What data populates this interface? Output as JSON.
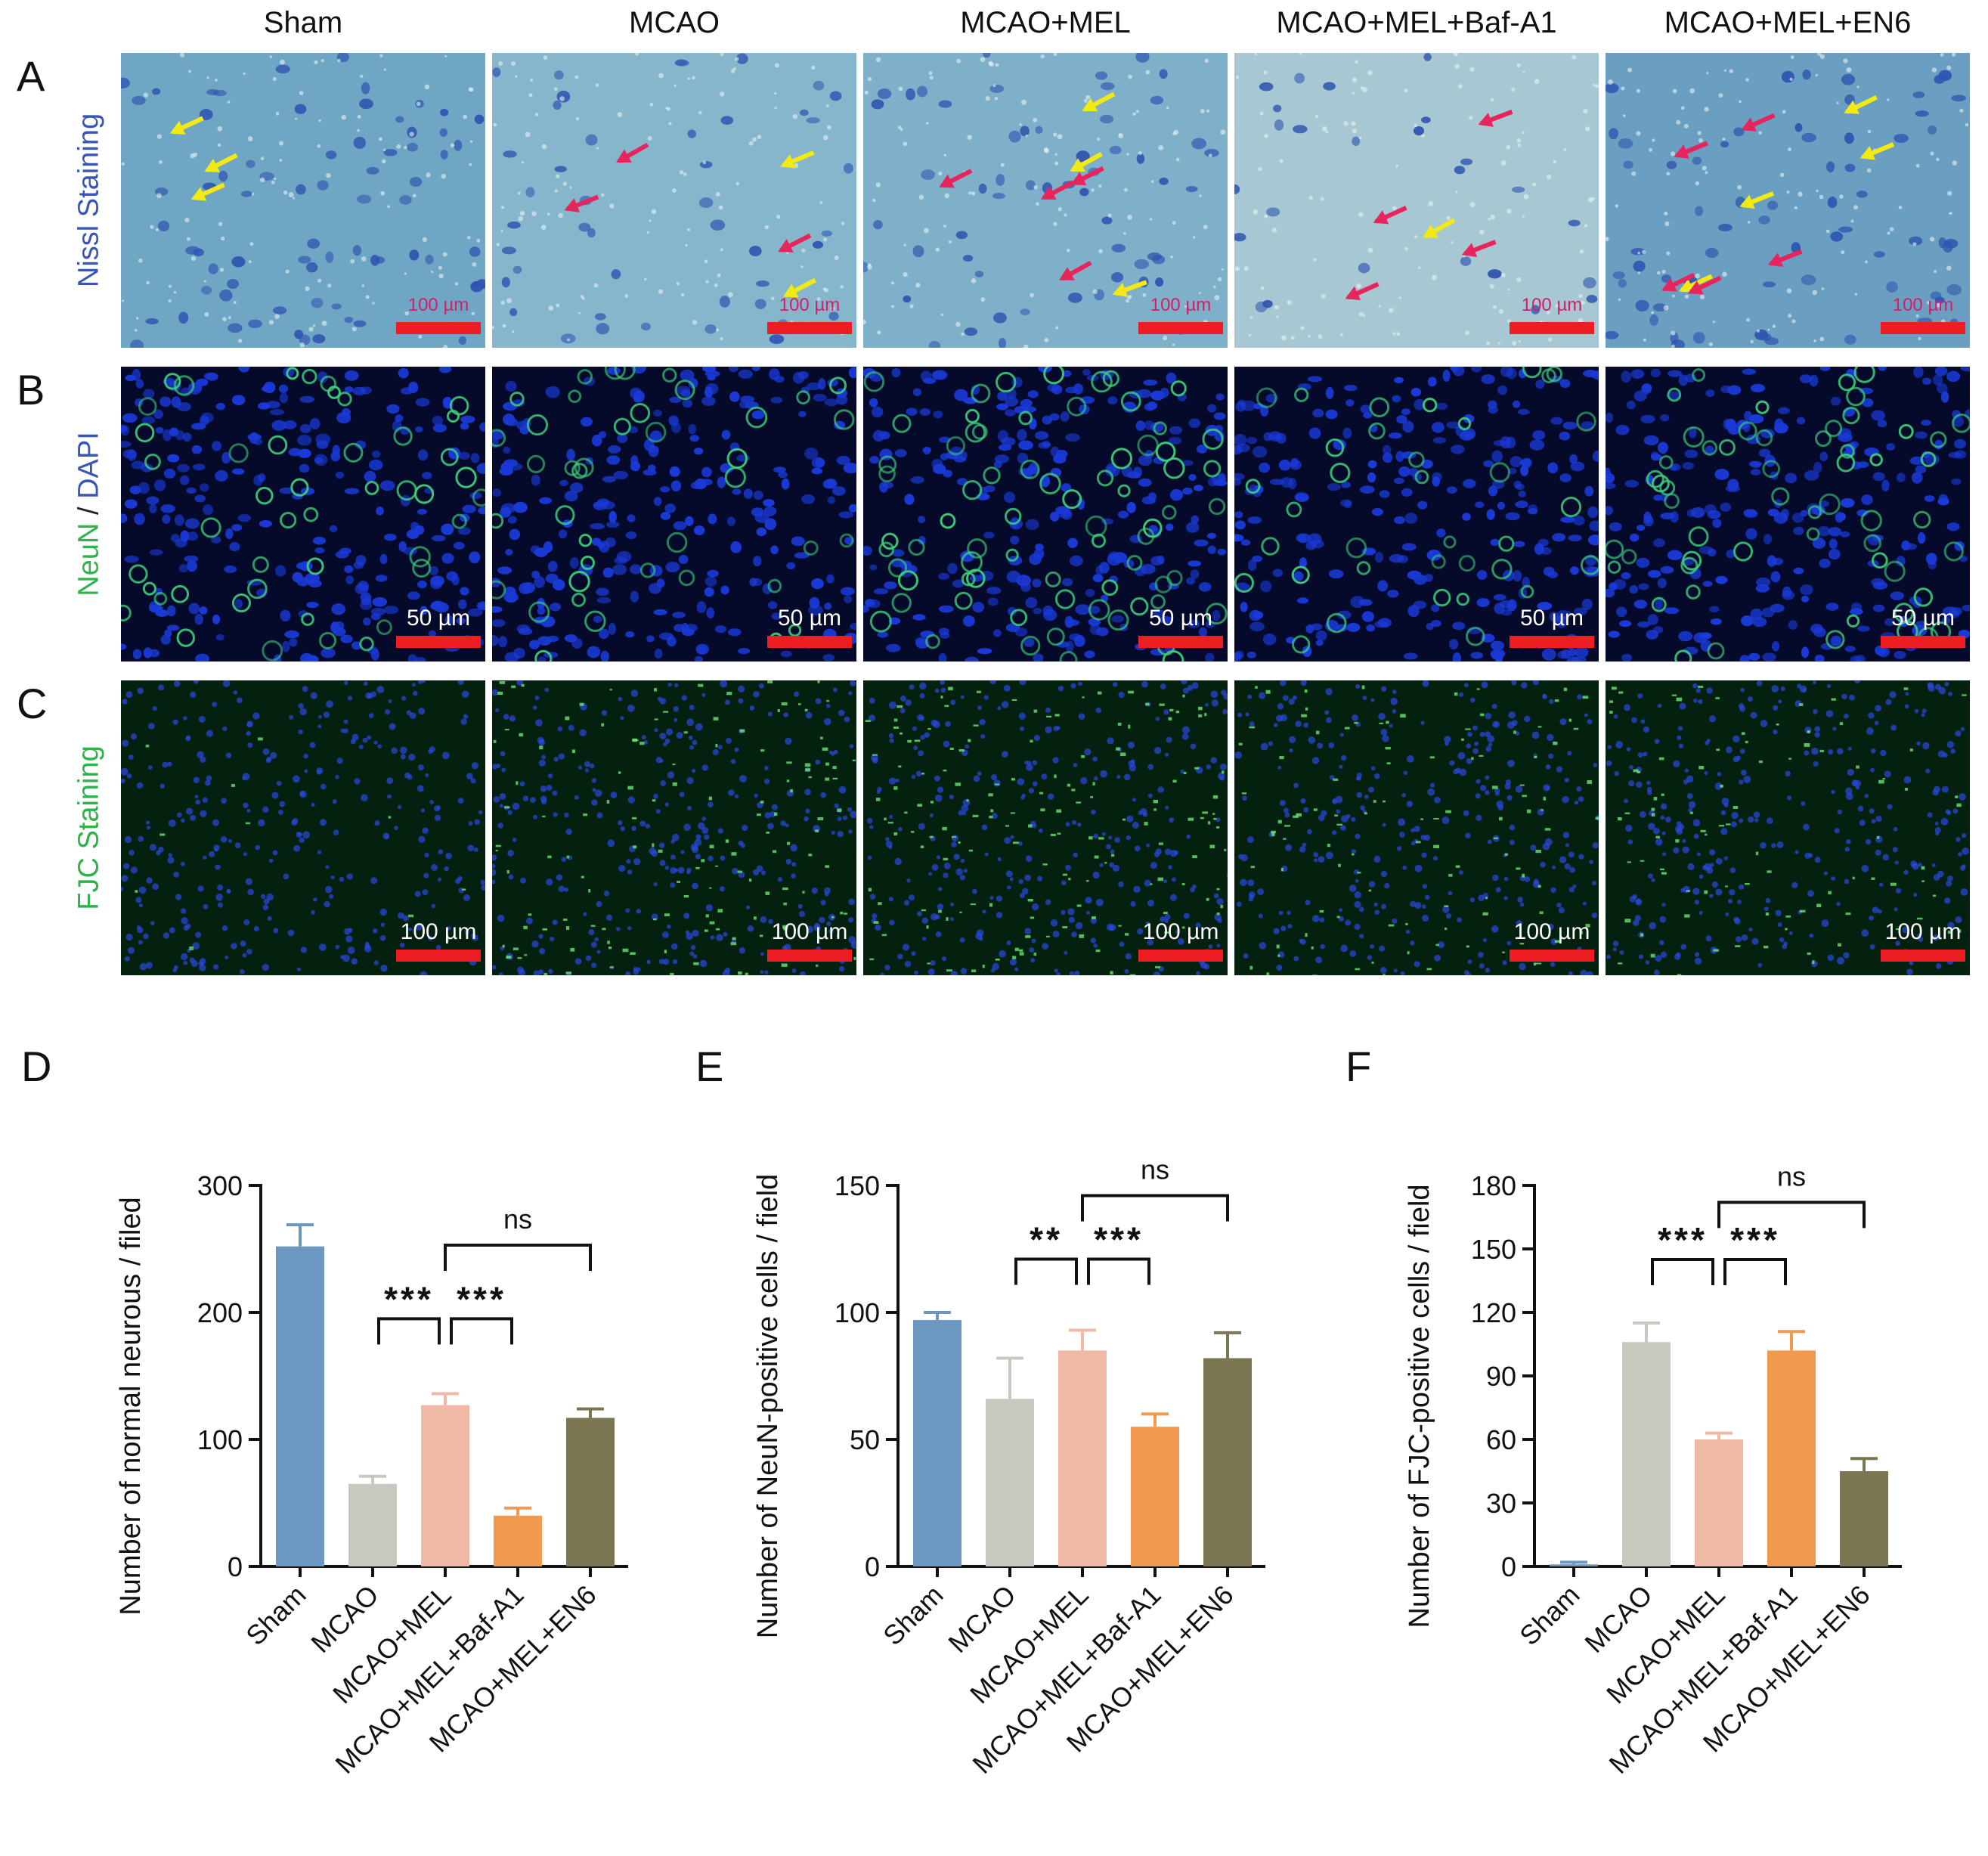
{
  "figure": {
    "groups": [
      "Sham",
      "MCAO",
      "MCAO+MEL",
      "MCAO+MEL+Baf-A1",
      "MCAO+MEL+EN6"
    ],
    "rows": [
      {
        "letter": "A",
        "label_parts": [
          {
            "text": "Nissl Staining",
            "color": "#3a56b5"
          }
        ],
        "scale": "100 µm",
        "style": "nissl"
      },
      {
        "letter": "B",
        "label_parts": [
          {
            "text": "NeuN",
            "color": "#2eb24a"
          },
          {
            "text": " / ",
            "color": "#222222"
          },
          {
            "text": "DAPI",
            "color": "#3a56b5"
          }
        ],
        "scale": "50 µm",
        "style": "neun"
      },
      {
        "letter": "C",
        "label_parts": [
          {
            "text": "FJC Staining",
            "color": "#2eb24a"
          }
        ],
        "scale": "100 µm",
        "style": "fjc"
      }
    ],
    "colors": {
      "Sham": "#6c97c0",
      "MCAO": "#c8c7c0",
      "MCAO+MEL": "#f0b9a6",
      "MCAO+MEL+Baf-A1": "#ef9a4f",
      "MCAO+MEL+EN6": "#7a7652",
      "scale_bar": "#ee1d23",
      "nissl_bg": "#7aaec7",
      "nissl_cell": "#2f55b0",
      "arrow_yellow": "#f2ea12",
      "arrow_red": "#e8245c"
    },
    "arrows": [
      {
        "yellow": 3,
        "red": 0
      },
      {
        "yellow": 2,
        "red": 3
      },
      {
        "yellow": 3,
        "red": 4
      },
      {
        "yellow": 1,
        "red": 4
      },
      {
        "yellow": 4,
        "red": 5
      }
    ]
  },
  "chart_data": [
    {
      "panel": "D",
      "type": "bar",
      "categories": [
        "Sham",
        "MCAO",
        "MCAO+MEL",
        "MCAO+MEL+Baf-A1",
        "MCAO+MEL+EN6"
      ],
      "values": [
        252,
        65,
        127,
        40,
        117
      ],
      "errors": [
        17,
        6,
        9,
        6,
        7
      ],
      "ylabel": "Number of normal neurous / filed",
      "ylim": [
        0,
        300
      ],
      "yticks": [
        0,
        100,
        200,
        300
      ],
      "significance": [
        {
          "from": 1,
          "to": 2,
          "label": "***",
          "y": 195
        },
        {
          "from": 2,
          "to": 3,
          "label": "***",
          "y": 195
        },
        {
          "from": 2,
          "to": 4,
          "label": "ns",
          "y": 253
        }
      ]
    },
    {
      "panel": "E",
      "type": "bar",
      "categories": [
        "Sham",
        "MCAO",
        "MCAO+MEL",
        "MCAO+MEL+Baf-A1",
        "MCAO+MEL+EN6"
      ],
      "values": [
        97,
        66,
        85,
        55,
        82
      ],
      "errors": [
        3,
        16,
        8,
        5,
        10
      ],
      "ylabel": "Number of NeuN-positive cells / field",
      "ylim": [
        0,
        150
      ],
      "yticks": [
        0,
        50,
        100,
        150
      ],
      "significance": [
        {
          "from": 1,
          "to": 2,
          "label": "**",
          "y": 121
        },
        {
          "from": 2,
          "to": 3,
          "label": "***",
          "y": 121
        },
        {
          "from": 2,
          "to": 4,
          "label": "ns",
          "y": 146
        }
      ]
    },
    {
      "panel": "F",
      "type": "bar",
      "categories": [
        "Sham",
        "MCAO",
        "MCAO+MEL",
        "MCAO+MEL+Baf-A1",
        "MCAO+MEL+EN6"
      ],
      "values": [
        1,
        106,
        60,
        102,
        45
      ],
      "errors": [
        1,
        9,
        3,
        9,
        6
      ],
      "ylabel": "Number of FJC-positive cells / field",
      "ylim": [
        0,
        180
      ],
      "yticks": [
        0,
        30,
        60,
        90,
        120,
        150,
        180
      ],
      "significance": [
        {
          "from": 1,
          "to": 2,
          "label": "***",
          "y": 145
        },
        {
          "from": 2,
          "to": 3,
          "label": "***",
          "y": 145
        },
        {
          "from": 2,
          "to": 4,
          "label": "ns",
          "y": 172
        }
      ]
    }
  ]
}
